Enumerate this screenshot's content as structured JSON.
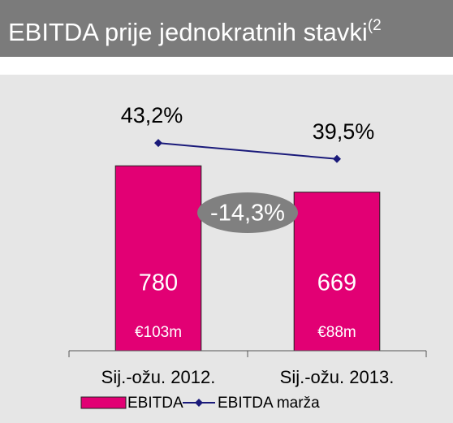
{
  "chart_data": {
    "type": "bar_line",
    "title": "EBITDA prije jednokratnih stavki",
    "title_note": "(2",
    "categories": [
      "Sij.-ožu. 2012.",
      "Sij.-ožu. 2013."
    ],
    "series": [
      {
        "name": "EBITDA",
        "type": "bar",
        "color": "#e20074",
        "values": [
          780,
          669
        ],
        "sublabels": [
          "€103m",
          "€88m"
        ]
      },
      {
        "name": "EBITDA marža",
        "type": "line",
        "axis": "y2",
        "color": "#1a1a7a",
        "values": [
          43.2,
          39.5
        ],
        "value_labels": [
          "43,2%",
          "39,5%"
        ]
      }
    ],
    "change_label": "-14,3%",
    "ylim": [
      0,
      1000
    ],
    "y2lim": [
      -5,
      50
    ],
    "legend": "bottom"
  }
}
